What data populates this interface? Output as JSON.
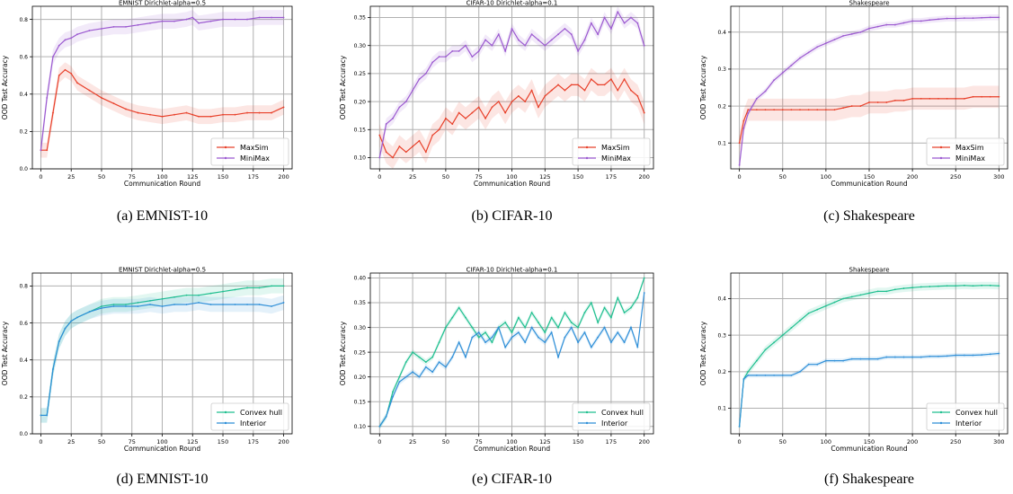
{
  "chart_data": [
    {
      "type": "line",
      "title": "EMNIST Dirichlet-alpha=0.5",
      "caption": "(a)  EMNIST-10",
      "xlabel": "Communication Round",
      "ylabel": "OOD Test Accuracy",
      "xlim": [
        -7,
        207
      ],
      "ylim": [
        0.0,
        0.87
      ],
      "xticks": [
        0,
        25,
        50,
        75,
        100,
        125,
        150,
        175,
        200
      ],
      "yticks": [
        0.0,
        0.2,
        0.4,
        0.6,
        0.8
      ],
      "ytick_labels": [
        "0.0",
        "0.2",
        "0.4",
        "0.6",
        "0.8"
      ],
      "grid": true,
      "legend_position": "lower-right",
      "x": [
        0,
        5,
        10,
        15,
        20,
        25,
        30,
        40,
        50,
        60,
        70,
        80,
        90,
        100,
        110,
        120,
        125,
        130,
        140,
        150,
        160,
        170,
        180,
        190,
        200
      ],
      "series": [
        {
          "name": "MaxSim",
          "color": "#e8402a",
          "band": 0.04,
          "values": [
            0.1,
            0.1,
            0.3,
            0.5,
            0.53,
            0.51,
            0.46,
            0.42,
            0.38,
            0.35,
            0.32,
            0.3,
            0.29,
            0.28,
            0.29,
            0.3,
            0.29,
            0.28,
            0.28,
            0.29,
            0.29,
            0.3,
            0.3,
            0.3,
            0.33
          ]
        },
        {
          "name": "MiniMax",
          "color": "#9b59d0",
          "band": 0.04,
          "values": [
            0.1,
            0.38,
            0.6,
            0.66,
            0.69,
            0.7,
            0.72,
            0.74,
            0.75,
            0.76,
            0.76,
            0.77,
            0.78,
            0.79,
            0.79,
            0.8,
            0.81,
            0.78,
            0.79,
            0.8,
            0.8,
            0.8,
            0.81,
            0.81,
            0.81
          ]
        }
      ]
    },
    {
      "type": "line",
      "title": "CIFAR-10 Dirichlet-alpha=0.1",
      "caption": "(b)  CIFAR-10",
      "xlabel": "Communication Round",
      "ylabel": "OOD Test Accuracy",
      "xlim": [
        -7,
        207
      ],
      "ylim": [
        0.08,
        0.37
      ],
      "xticks": [
        0,
        25,
        50,
        75,
        100,
        125,
        150,
        175,
        200
      ],
      "yticks": [
        0.1,
        0.15,
        0.2,
        0.25,
        0.3,
        0.35
      ],
      "ytick_labels": [
        "0.10",
        "0.15",
        "0.20",
        "0.25",
        "0.30",
        "0.35"
      ],
      "grid": true,
      "legend_position": "lower-right",
      "x": [
        0,
        5,
        10,
        15,
        20,
        25,
        30,
        35,
        40,
        45,
        50,
        55,
        60,
        65,
        70,
        75,
        80,
        85,
        90,
        95,
        100,
        105,
        110,
        115,
        120,
        125,
        130,
        135,
        140,
        145,
        150,
        155,
        160,
        165,
        170,
        175,
        180,
        185,
        190,
        195,
        200
      ],
      "series": [
        {
          "name": "MaxSim",
          "color": "#e8402a",
          "band": 0.02,
          "values": [
            0.14,
            0.11,
            0.1,
            0.12,
            0.11,
            0.12,
            0.13,
            0.11,
            0.14,
            0.15,
            0.17,
            0.16,
            0.18,
            0.17,
            0.18,
            0.19,
            0.17,
            0.19,
            0.2,
            0.18,
            0.2,
            0.21,
            0.2,
            0.22,
            0.19,
            0.21,
            0.22,
            0.23,
            0.22,
            0.23,
            0.23,
            0.22,
            0.24,
            0.23,
            0.23,
            0.24,
            0.22,
            0.24,
            0.22,
            0.21,
            0.18
          ]
        },
        {
          "name": "MiniMax",
          "color": "#9b59d0",
          "band": 0.01,
          "values": [
            0.1,
            0.16,
            0.17,
            0.19,
            0.2,
            0.22,
            0.24,
            0.25,
            0.27,
            0.28,
            0.28,
            0.29,
            0.29,
            0.3,
            0.28,
            0.29,
            0.31,
            0.3,
            0.32,
            0.29,
            0.33,
            0.31,
            0.3,
            0.32,
            0.31,
            0.3,
            0.31,
            0.32,
            0.33,
            0.32,
            0.29,
            0.31,
            0.34,
            0.32,
            0.35,
            0.33,
            0.36,
            0.34,
            0.35,
            0.34,
            0.3
          ]
        }
      ]
    },
    {
      "type": "line",
      "title": "Shakespeare",
      "caption": "(c)  Shakespeare",
      "xlabel": "Communication Round",
      "ylabel": "OOD Test Accuracy",
      "xlim": [
        -10,
        310
      ],
      "ylim": [
        0.03,
        0.47
      ],
      "xticks": [
        0,
        50,
        100,
        150,
        200,
        250,
        300
      ],
      "yticks": [
        0.1,
        0.2,
        0.3,
        0.4
      ],
      "ytick_labels": [
        "0.1",
        "0.2",
        "0.3",
        "0.4"
      ],
      "grid": true,
      "legend_position": "lower-right",
      "x": [
        0,
        5,
        10,
        20,
        30,
        40,
        50,
        60,
        70,
        80,
        90,
        100,
        110,
        120,
        130,
        140,
        150,
        160,
        170,
        180,
        190,
        200,
        210,
        220,
        230,
        240,
        250,
        260,
        270,
        280,
        290,
        300
      ],
      "series": [
        {
          "name": "MaxSim",
          "color": "#e8402a",
          "band": 0.03,
          "values": [
            0.1,
            0.16,
            0.19,
            0.19,
            0.19,
            0.19,
            0.19,
            0.19,
            0.19,
            0.19,
            0.19,
            0.19,
            0.19,
            0.195,
            0.2,
            0.2,
            0.21,
            0.21,
            0.21,
            0.215,
            0.215,
            0.22,
            0.22,
            0.22,
            0.22,
            0.22,
            0.22,
            0.22,
            0.225,
            0.225,
            0.225,
            0.225
          ]
        },
        {
          "name": "MiniMax",
          "color": "#9b59d0",
          "band": 0.008,
          "values": [
            0.04,
            0.14,
            0.18,
            0.22,
            0.24,
            0.27,
            0.29,
            0.31,
            0.33,
            0.345,
            0.36,
            0.37,
            0.38,
            0.39,
            0.395,
            0.4,
            0.41,
            0.415,
            0.42,
            0.42,
            0.425,
            0.43,
            0.43,
            0.433,
            0.435,
            0.437,
            0.437,
            0.438,
            0.438,
            0.439,
            0.44,
            0.44
          ]
        }
      ]
    },
    {
      "type": "line",
      "title": "EMNIST Dirichlet-alpha=0.5",
      "caption": "(d)  EMNIST-10",
      "xlabel": "Communication Round",
      "ylabel": "OOD Test Accuracy",
      "xlim": [
        -7,
        207
      ],
      "ylim": [
        0.0,
        0.87
      ],
      "xticks": [
        0,
        25,
        50,
        75,
        100,
        125,
        150,
        175,
        200
      ],
      "yticks": [
        0.0,
        0.2,
        0.4,
        0.6,
        0.8
      ],
      "ytick_labels": [
        "0.0",
        "0.2",
        "0.4",
        "0.6",
        "0.8"
      ],
      "grid": true,
      "legend_position": "lower-right",
      "x": [
        0,
        5,
        10,
        15,
        20,
        25,
        30,
        40,
        50,
        60,
        70,
        80,
        90,
        100,
        110,
        120,
        130,
        140,
        150,
        160,
        170,
        180,
        190,
        200
      ],
      "series": [
        {
          "name": "Convex hull",
          "color": "#1fbf8f",
          "band": 0.04,
          "values": [
            0.1,
            0.1,
            0.35,
            0.5,
            0.57,
            0.61,
            0.63,
            0.66,
            0.69,
            0.7,
            0.7,
            0.71,
            0.72,
            0.73,
            0.74,
            0.75,
            0.75,
            0.76,
            0.77,
            0.78,
            0.79,
            0.79,
            0.8,
            0.8
          ]
        },
        {
          "name": "Interior",
          "color": "#2f8fd8",
          "band": 0.04,
          "values": [
            0.1,
            0.1,
            0.35,
            0.5,
            0.57,
            0.61,
            0.63,
            0.66,
            0.68,
            0.69,
            0.69,
            0.69,
            0.7,
            0.69,
            0.7,
            0.7,
            0.71,
            0.7,
            0.7,
            0.7,
            0.7,
            0.7,
            0.69,
            0.71
          ]
        }
      ]
    },
    {
      "type": "line",
      "title": "CIFAR-10 Dirichlet-alpha=0.1",
      "caption": "(e)  CIFAR-10",
      "xlabel": "Communication Round",
      "ylabel": "OOD Test Accuracy",
      "xlim": [
        -7,
        207
      ],
      "ylim": [
        0.085,
        0.41
      ],
      "xticks": [
        0,
        25,
        50,
        75,
        100,
        125,
        150,
        175,
        200
      ],
      "yticks": [
        0.1,
        0.15,
        0.2,
        0.25,
        0.3,
        0.35,
        0.4
      ],
      "ytick_labels": [
        "0.10",
        "0.15",
        "0.20",
        "0.25",
        "0.30",
        "0.35",
        "0.40"
      ],
      "grid": true,
      "legend_position": "lower-right",
      "x": [
        0,
        5,
        10,
        15,
        20,
        25,
        30,
        35,
        40,
        45,
        50,
        55,
        60,
        65,
        70,
        75,
        80,
        85,
        90,
        95,
        100,
        105,
        110,
        115,
        120,
        125,
        130,
        135,
        140,
        145,
        150,
        155,
        160,
        165,
        170,
        175,
        180,
        185,
        190,
        195,
        200
      ],
      "series": [
        {
          "name": "Convex hull",
          "color": "#1fbf8f",
          "band": 0.006,
          "values": [
            0.1,
            0.12,
            0.17,
            0.2,
            0.23,
            0.25,
            0.24,
            0.23,
            0.24,
            0.27,
            0.3,
            0.32,
            0.34,
            0.32,
            0.3,
            0.28,
            0.29,
            0.27,
            0.3,
            0.31,
            0.29,
            0.32,
            0.3,
            0.33,
            0.31,
            0.29,
            0.32,
            0.3,
            0.33,
            0.31,
            0.3,
            0.33,
            0.35,
            0.31,
            0.34,
            0.32,
            0.36,
            0.33,
            0.34,
            0.36,
            0.4
          ]
        },
        {
          "name": "Interior",
          "color": "#2f8fd8",
          "band": 0.006,
          "values": [
            0.1,
            0.12,
            0.16,
            0.19,
            0.2,
            0.21,
            0.2,
            0.22,
            0.21,
            0.23,
            0.22,
            0.24,
            0.27,
            0.24,
            0.28,
            0.29,
            0.27,
            0.28,
            0.3,
            0.26,
            0.28,
            0.29,
            0.27,
            0.3,
            0.28,
            0.27,
            0.29,
            0.24,
            0.28,
            0.3,
            0.27,
            0.29,
            0.26,
            0.28,
            0.3,
            0.27,
            0.29,
            0.27,
            0.3,
            0.26,
            0.37
          ]
        }
      ]
    },
    {
      "type": "line",
      "title": "Shakespeare",
      "caption": "(f)  Shakespeare",
      "xlabel": "Communication Round",
      "ylabel": "OOD Test Accuracy",
      "xlim": [
        -10,
        310
      ],
      "ylim": [
        0.03,
        0.47
      ],
      "xticks": [
        0,
        50,
        100,
        150,
        200,
        250,
        300
      ],
      "yticks": [
        0.1,
        0.2,
        0.3,
        0.4
      ],
      "ytick_labels": [
        "0.1",
        "0.2",
        "0.3",
        "0.4"
      ],
      "grid": true,
      "legend_position": "lower-right",
      "x": [
        0,
        5,
        10,
        20,
        30,
        40,
        50,
        60,
        70,
        80,
        90,
        100,
        110,
        120,
        130,
        140,
        150,
        160,
        170,
        180,
        190,
        200,
        210,
        220,
        230,
        240,
        250,
        260,
        270,
        280,
        290,
        300
      ],
      "series": [
        {
          "name": "Convex hull",
          "color": "#1fbf8f",
          "band": 0.01,
          "values": [
            0.05,
            0.18,
            0.2,
            0.23,
            0.26,
            0.28,
            0.3,
            0.32,
            0.34,
            0.36,
            0.37,
            0.38,
            0.39,
            0.4,
            0.405,
            0.41,
            0.415,
            0.42,
            0.42,
            0.425,
            0.428,
            0.43,
            0.432,
            0.433,
            0.434,
            0.435,
            0.435,
            0.436,
            0.435,
            0.436,
            0.436,
            0.435
          ]
        },
        {
          "name": "Interior",
          "color": "#2f8fd8",
          "band": 0.006,
          "values": [
            0.05,
            0.18,
            0.19,
            0.19,
            0.19,
            0.19,
            0.19,
            0.19,
            0.2,
            0.22,
            0.22,
            0.23,
            0.23,
            0.23,
            0.235,
            0.235,
            0.235,
            0.235,
            0.24,
            0.24,
            0.24,
            0.24,
            0.24,
            0.242,
            0.242,
            0.243,
            0.245,
            0.245,
            0.245,
            0.246,
            0.248,
            0.25
          ]
        }
      ]
    }
  ]
}
